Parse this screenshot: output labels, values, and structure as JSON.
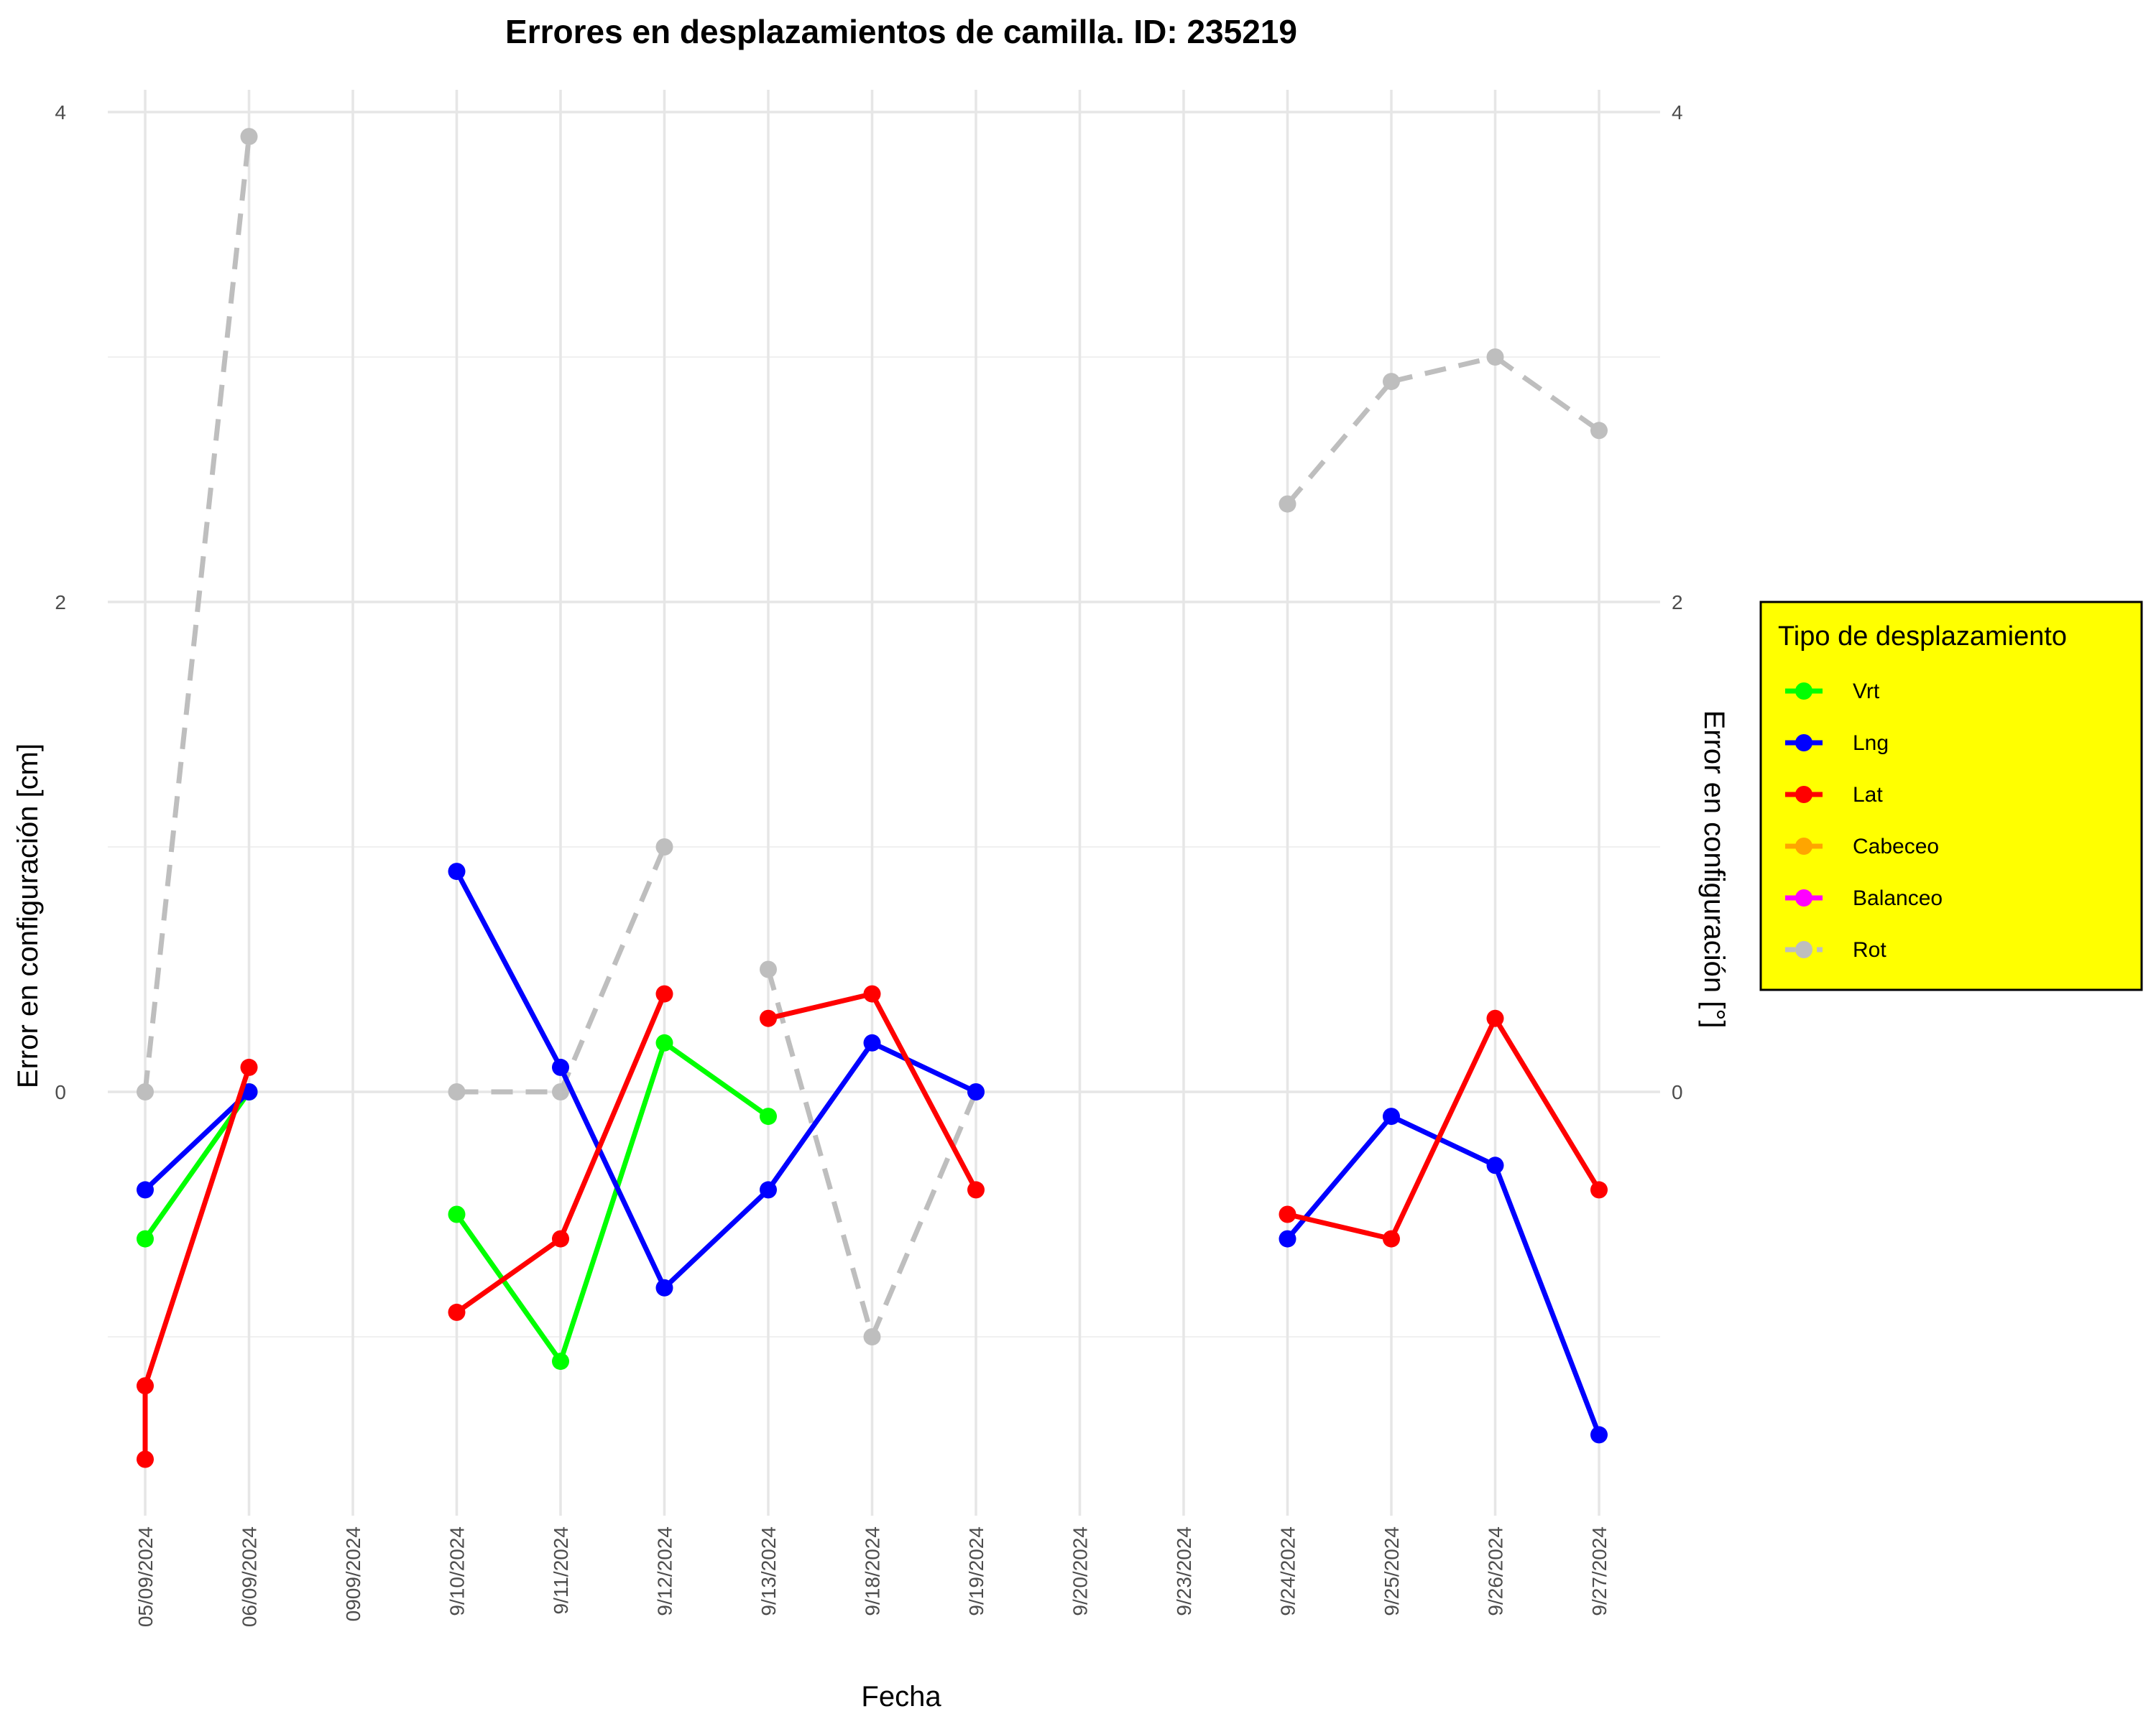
{
  "chart_data": {
    "type": "line",
    "title": "Errores en desplazamientos de camilla. ID: 235219",
    "xlabel": "Fecha",
    "ylabel": "Error en configuración [cm]",
    "ylabel_right": "Error en configuración [°]",
    "categories": [
      "05/09/2024",
      "06/09/2024",
      "0909/2024",
      "9/10/2024",
      "9/11/2024",
      "9/12/2024",
      "9/13/2024",
      "9/18/2024",
      "9/19/2024",
      "9/20/2024",
      "9/23/2024",
      "9/24/2024",
      "9/25/2024",
      "9/26/2024",
      "9/27/2024"
    ],
    "yticks": [
      0,
      2,
      4
    ],
    "ylim": [
      -1.75,
      4.15
    ],
    "y_minor_gridlines": [
      -1,
      1,
      3
    ],
    "grid": true,
    "legend": {
      "title": "Tipo de desplazamiento",
      "placement": "right",
      "background": "#ffff00",
      "entries": [
        "Vrt",
        "Lng",
        "Lat",
        "Cabeceo",
        "Balanceo",
        "Rot"
      ]
    },
    "colors": {
      "Vrt": "#00ff00",
      "Lng": "#0000ff",
      "Lat": "#ff0000",
      "Cabeceo": "#ffa500",
      "Balanceo": "#ff00ff",
      "Rot": "#bebebe"
    },
    "series": [
      {
        "name": "Vrt",
        "dashed": false,
        "points": [
          [
            "05/09/2024",
            -0.6
          ],
          [
            "06/09/2024",
            0.0
          ],
          [
            "9/10/2024",
            -0.5
          ],
          [
            "9/11/2024",
            -1.1
          ],
          [
            "9/12/2024",
            0.2
          ],
          [
            "9/13/2024",
            -0.1
          ]
        ]
      },
      {
        "name": "Lng",
        "dashed": false,
        "points": [
          [
            "05/09/2024",
            -0.4
          ],
          [
            "06/09/2024",
            0.0
          ],
          [
            "9/10/2024",
            0.9
          ],
          [
            "9/11/2024",
            0.1
          ],
          [
            "9/12/2024",
            -0.8
          ],
          [
            "9/13/2024",
            -0.4
          ],
          [
            "9/18/2024",
            0.2
          ],
          [
            "9/19/2024",
            0.0
          ],
          [
            "9/24/2024",
            -0.6
          ],
          [
            "9/25/2024",
            -0.1
          ],
          [
            "9/26/2024",
            -0.3
          ],
          [
            "9/27/2024",
            -1.4
          ]
        ]
      },
      {
        "name": "Lat",
        "dashed": false,
        "points": [
          [
            "05/09/2024",
            -1.5
          ],
          [
            "05/09/2024",
            -1.2
          ],
          [
            "06/09/2024",
            0.1
          ],
          [
            "9/10/2024",
            -0.9
          ],
          [
            "9/11/2024",
            -0.6
          ],
          [
            "9/12/2024",
            0.4
          ],
          [
            "9/13/2024",
            0.3
          ],
          [
            "9/18/2024",
            0.4
          ],
          [
            "9/19/2024",
            -0.4
          ],
          [
            "9/24/2024",
            -0.5
          ],
          [
            "9/25/2024",
            -0.6
          ],
          [
            "9/26/2024",
            0.3
          ],
          [
            "9/27/2024",
            -0.4
          ]
        ]
      },
      {
        "name": "Cabeceo",
        "dashed": false,
        "points": []
      },
      {
        "name": "Balanceo",
        "dashed": false,
        "points": []
      },
      {
        "name": "Rot",
        "dashed": true,
        "points": [
          [
            "05/09/2024",
            0.0
          ],
          [
            "06/09/2024",
            3.9
          ],
          [
            "9/10/2024",
            0.0
          ],
          [
            "9/11/2024",
            0.0
          ],
          [
            "9/12/2024",
            1.0
          ],
          [
            "9/13/2024",
            0.5
          ],
          [
            "9/18/2024",
            -1.0
          ],
          [
            "9/19/2024",
            0.0
          ],
          [
            "9/24/2024",
            2.4
          ],
          [
            "9/25/2024",
            2.9
          ],
          [
            "9/26/2024",
            3.0
          ],
          [
            "9/27/2024",
            2.7
          ]
        ]
      }
    ]
  }
}
